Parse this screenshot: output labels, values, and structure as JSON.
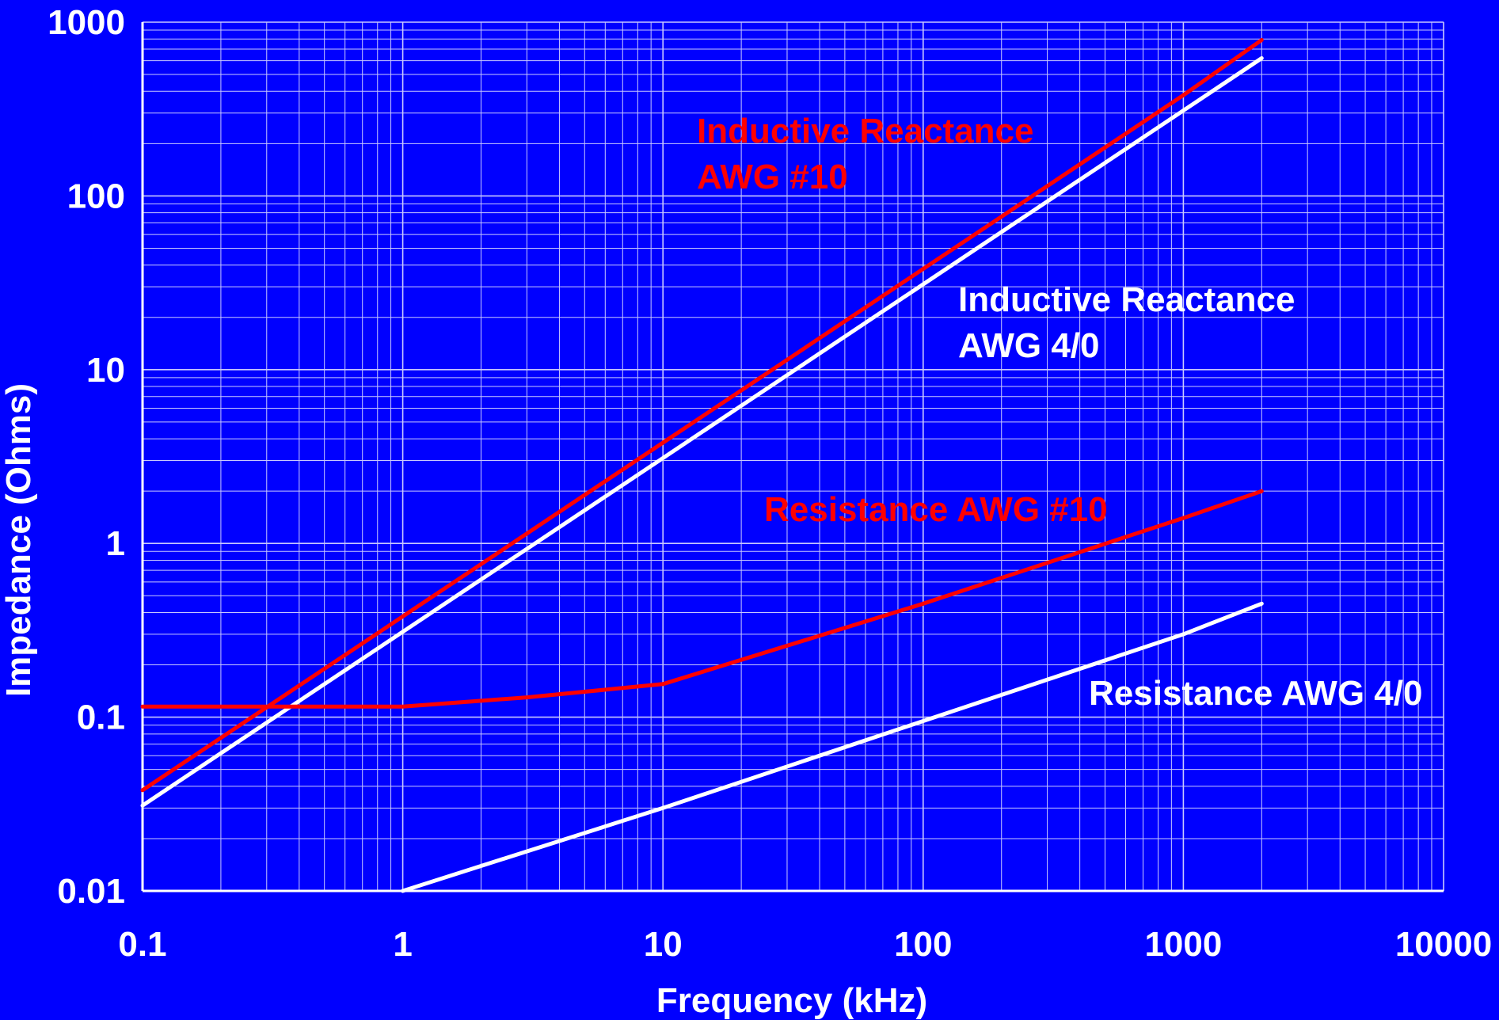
{
  "chart_data": {
    "type": "line",
    "xlabel": "Frequency (kHz)",
    "ylabel": "Impedance (Ohms)",
    "x_scale": "log",
    "y_scale": "log",
    "xlim": [
      0.1,
      10000
    ],
    "ylim": [
      0.01,
      1000
    ],
    "grid": true,
    "x_ticks": [
      "0.1",
      "1",
      "10",
      "100",
      "1000",
      "10000"
    ],
    "y_ticks": [
      "0.01",
      "0.1",
      "1",
      "10",
      "100",
      "1000"
    ],
    "colors": {
      "background": "#0000ff",
      "grid": "#c8c8ff",
      "red": "#ff0000",
      "white": "#ffffff"
    },
    "series": [
      {
        "name": "Inductive Reactance AWG #10",
        "label_lines": [
          "Inductive Reactance",
          "AWG #10"
        ],
        "color": "#ff0000",
        "x": [
          0.1,
          1,
          10,
          100,
          1000,
          2000
        ],
        "y": [
          0.038,
          0.38,
          3.8,
          38,
          380,
          790
        ]
      },
      {
        "name": "Inductive Reactance AWG 4/0",
        "label_lines": [
          "Inductive Reactance",
          "AWG 4/0"
        ],
        "color": "#ffffff",
        "x": [
          0.1,
          1,
          10,
          100,
          1000,
          2000
        ],
        "y": [
          0.031,
          0.31,
          3.1,
          31,
          310,
          620
        ]
      },
      {
        "name": "Resistance AWG #10",
        "label_lines": [
          "Resistance AWG #10"
        ],
        "color": "#ff0000",
        "x": [
          0.1,
          1,
          3,
          10,
          100,
          1000,
          2000
        ],
        "y": [
          0.115,
          0.115,
          0.13,
          0.155,
          0.45,
          1.4,
          2.0
        ]
      },
      {
        "name": "Resistance AWG 4/0",
        "label_lines": [
          "Resistance AWG 4/0"
        ],
        "color": "#ffffff",
        "x": [
          1,
          10,
          100,
          1000,
          2000
        ],
        "y": [
          0.01,
          0.03,
          0.095,
          0.3,
          0.45
        ]
      }
    ]
  }
}
